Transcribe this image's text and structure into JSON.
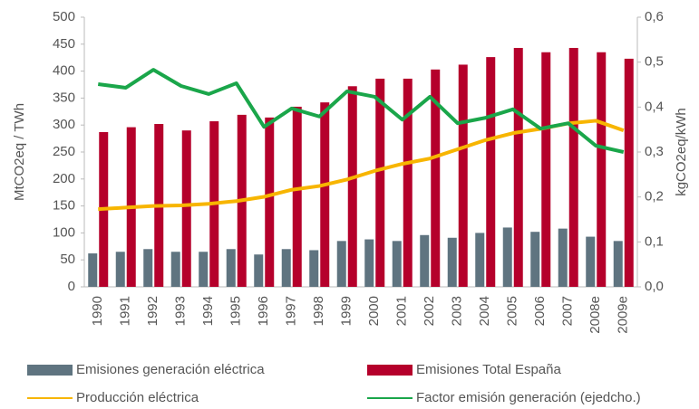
{
  "chart_data": {
    "type": "bar-line",
    "categories": [
      "1990",
      "1991",
      "1992",
      "1993",
      "1994",
      "1995",
      "1996",
      "1997",
      "1998",
      "1999",
      "2000",
      "2001",
      "2002",
      "2003",
      "2004",
      "2005",
      "2006",
      "2007",
      "2008e",
      "2009e"
    ],
    "ylabel": "MtCO2eq / TWh",
    "y2label": "kgCO2eq/kWh",
    "ylim": [
      0,
      500
    ],
    "yticks": [
      0,
      50,
      100,
      150,
      200,
      250,
      300,
      350,
      400,
      450,
      500
    ],
    "y2lim": [
      0,
      0.6
    ],
    "y2ticks": [
      {
        "value": 0,
        "label": "0,0"
      },
      {
        "value": 0.1,
        "label": "0,1"
      },
      {
        "value": 0.2,
        "label": "0,2"
      },
      {
        "value": 0.3,
        "label": "0,3"
      },
      {
        "value": 0.4,
        "label": "0,4"
      },
      {
        "value": 0.5,
        "label": "0,5"
      },
      {
        "value": 0.6,
        "label": "0,6"
      }
    ],
    "series": [
      {
        "name": "Emisiones generación eléctrica",
        "type": "bar",
        "color": "#5f7480",
        "values": [
          62,
          65,
          70,
          65,
          65,
          70,
          60,
          70,
          68,
          85,
          88,
          85,
          96,
          91,
          100,
          110,
          102,
          108,
          93,
          85
        ]
      },
      {
        "name": "Emisiones Total España",
        "type": "bar",
        "color": "#b5002b",
        "values": [
          287,
          296,
          302,
          290,
          307,
          319,
          314,
          334,
          342,
          372,
          386,
          386,
          403,
          412,
          426,
          443,
          435,
          443,
          435,
          423
        ]
      },
      {
        "name": "Producción eléctrica",
        "type": "line",
        "color": "#f7b500",
        "values": [
          144,
          147,
          150,
          151,
          154,
          159,
          167,
          180,
          187,
          199,
          215,
          228,
          238,
          255,
          272,
          285,
          293,
          303,
          308,
          290
        ]
      },
      {
        "name": "Factor emisión generación (ejedcho.)",
        "type": "line",
        "axis": "y2",
        "color": "#1aa64a",
        "values": [
          0.451,
          0.443,
          0.483,
          0.447,
          0.429,
          0.453,
          0.356,
          0.397,
          0.379,
          0.435,
          0.423,
          0.372,
          0.423,
          0.364,
          0.376,
          0.395,
          0.352,
          0.364,
          0.314,
          0.3
        ]
      }
    ]
  }
}
